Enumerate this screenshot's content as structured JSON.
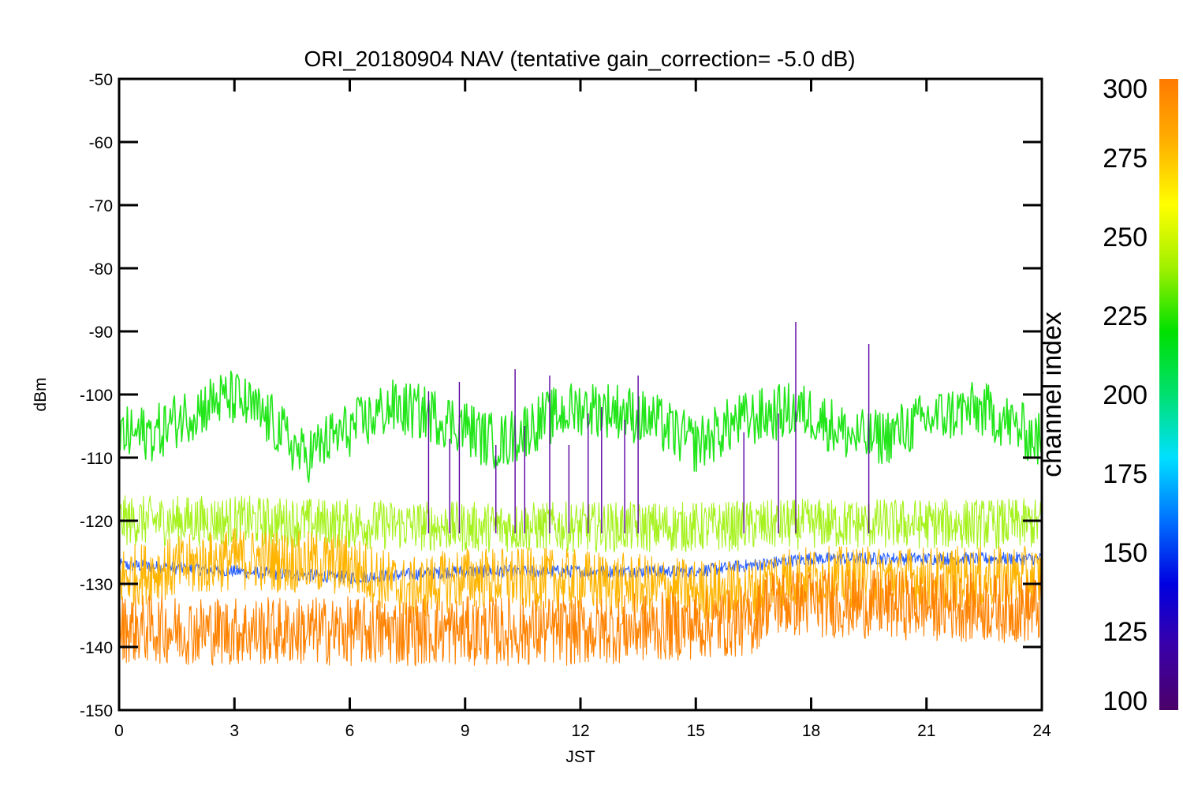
{
  "chart_data": {
    "type": "line",
    "title": "ORI_20180904 NAV (tentative gain_correction= -5.0 dB)",
    "xlabel": "JST",
    "ylabel": "dBm",
    "xlim": [
      0,
      24
    ],
    "ylim": [
      -150,
      -50
    ],
    "xticks": [
      0,
      3,
      6,
      9,
      12,
      15,
      18,
      21,
      24
    ],
    "yticks": [
      -50,
      -60,
      -70,
      -80,
      -90,
      -100,
      -110,
      -120,
      -130,
      -140,
      -150
    ],
    "grid": false,
    "colorbar": {
      "title": "channel index",
      "range": [
        100,
        300
      ],
      "ticks": [
        100,
        125,
        150,
        175,
        200,
        225,
        250,
        275,
        300
      ],
      "colormap": [
        "#4b0068",
        "#3a00a8",
        "#0000e0",
        "#0070ff",
        "#00e0ff",
        "#00e070",
        "#00e000",
        "#a0f000",
        "#ffff00",
        "#ffb000",
        "#ff7a00"
      ]
    },
    "series": [
      {
        "color": "#22e61a",
        "x": [
          0,
          1,
          1.5,
          2.5,
          3,
          3.5,
          4,
          4.8,
          5.5,
          6,
          6.5,
          7,
          7.5,
          8,
          8.5,
          9,
          9.5,
          10,
          11,
          12,
          13,
          14,
          15,
          16,
          17,
          17.5,
          18,
          19,
          19.5,
          20,
          21,
          22,
          22.5,
          23,
          24
        ],
        "values": [
          -106.5,
          -106,
          -104,
          -101,
          -100.5,
          -102.5,
          -104.5,
          -110,
          -107,
          -105.5,
          -104,
          -102,
          -102.5,
          -103,
          -104,
          -105,
          -107,
          -107.5,
          -104,
          -102,
          -102.5,
          -104.5,
          -108,
          -104.5,
          -103,
          -102.5,
          -103,
          -106.5,
          -107,
          -106.5,
          -104,
          -102.5,
          -102.5,
          -104,
          -107.5
        ]
      },
      {
        "color": "#a6f21e",
        "x": [
          0,
          3,
          6,
          9,
          12,
          15,
          18,
          21,
          24
        ],
        "values": [
          -120,
          -120,
          -120.5,
          -121,
          -121,
          -121,
          -120.5,
          -120.5,
          -120.5
        ]
      },
      {
        "color": "#ffb400",
        "x": [
          0,
          3,
          6,
          7.5,
          9,
          12,
          15,
          16.5,
          17,
          18,
          21,
          24
        ],
        "values": [
          -129,
          -126,
          -127,
          -131,
          -129,
          -129.5,
          -131,
          -131,
          -129,
          -129,
          -129,
          -129
        ]
      },
      {
        "color": "#ff8200",
        "x": [
          0,
          3,
          6,
          9,
          12,
          15,
          16.5,
          16.8,
          18,
          21,
          24
        ],
        "values": [
          -137,
          -137.5,
          -137.5,
          -137.5,
          -137.5,
          -136.5,
          -136,
          -133,
          -133,
          -133.5,
          -134
        ]
      },
      {
        "color": "#2a60ff",
        "x": [
          0,
          3,
          6,
          9,
          12,
          15,
          18,
          21,
          24
        ],
        "values": [
          -127,
          -128,
          -129,
          -128,
          -128,
          -128,
          -126,
          -126,
          -126
        ]
      }
    ],
    "spikes": [
      {
        "x": 8.05,
        "top": -99.5,
        "color": "#5a00a0"
      },
      {
        "x": 8.6,
        "top": -107,
        "color": "#5a00a0"
      },
      {
        "x": 8.85,
        "top": -98,
        "color": "#5a00a0"
      },
      {
        "x": 9.8,
        "top": -108,
        "color": "#5a00a0"
      },
      {
        "x": 10.3,
        "top": -96,
        "color": "#5a00a0"
      },
      {
        "x": 10.55,
        "top": -105,
        "color": "#5a00a0"
      },
      {
        "x": 11.2,
        "top": -97,
        "color": "#5a00a0"
      },
      {
        "x": 11.7,
        "top": -108,
        "color": "#5a00a0"
      },
      {
        "x": 12.2,
        "top": -103,
        "color": "#5a00a0"
      },
      {
        "x": 12.55,
        "top": -102,
        "color": "#5a00a0"
      },
      {
        "x": 13.15,
        "top": -104,
        "color": "#5a00a0"
      },
      {
        "x": 13.5,
        "top": -97,
        "color": "#5a00a0"
      },
      {
        "x": 16.25,
        "top": -106,
        "color": "#5a00a0"
      },
      {
        "x": 17.15,
        "top": -103,
        "color": "#5a00a0"
      },
      {
        "x": 17.6,
        "top": -88.5,
        "color": "#5a00a0"
      },
      {
        "x": 19.5,
        "top": -92,
        "color": "#5a00a0"
      }
    ]
  }
}
